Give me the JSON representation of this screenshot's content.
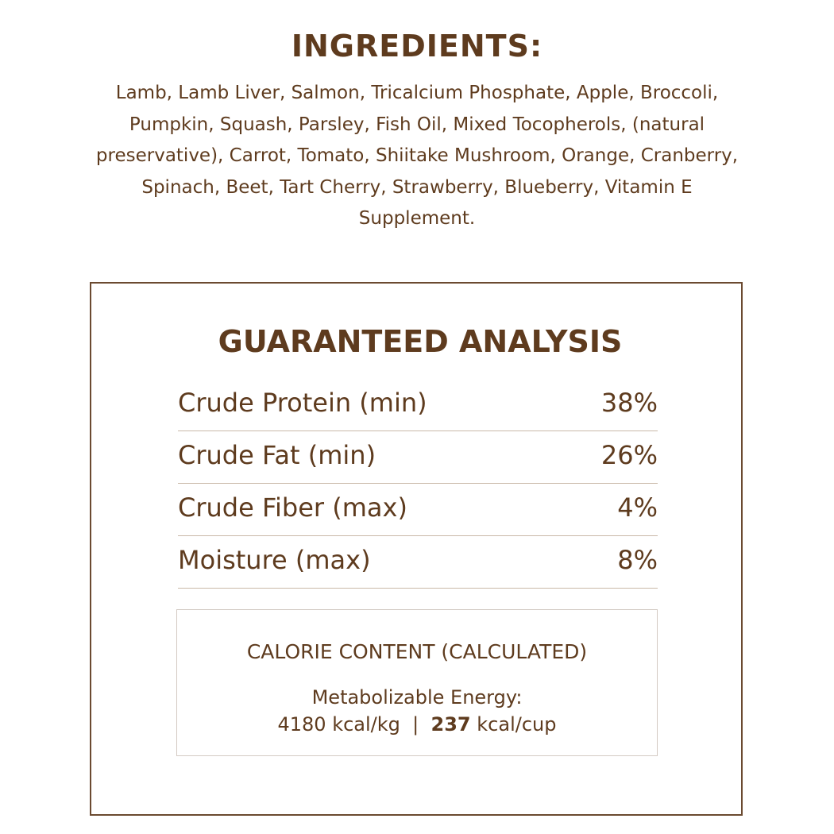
{
  "ingredients": {
    "title": "INGREDIENTS:",
    "text": "Lamb, Lamb Liver, Salmon, Tricalcium Phosphate, Apple, Broccoli, Pumpkin, Squash, Parsley, Fish Oil, Mixed Tocopherols, (natural preservative), Carrot, Tomato, Shiitake Mushroom, Orange, Cranberry, Spinach, Beet, Tart Cherry, Strawberry, Blueberry, Vitamin E Supplement."
  },
  "analysis": {
    "title": "GUARANTEED ANALYSIS",
    "rows": [
      {
        "label": "Crude Protein (min)",
        "value": "38%"
      },
      {
        "label": "Crude Fat (min)",
        "value": "26%"
      },
      {
        "label": "Crude Fiber (max)",
        "value": "4%"
      },
      {
        "label": "Moisture (max)",
        "value": "8%"
      }
    ]
  },
  "calorie": {
    "heading": "CALORIE CONTENT (CALCULATED)",
    "energy_label": "Metabolizable Energy:",
    "per_kg": "4180 kcal/kg",
    "separator": "|",
    "per_cup_number": "237",
    "per_cup_unit": "kcal/cup"
  },
  "colors": {
    "text": "#5e3b1e",
    "box_border": "#6b4a30",
    "divider": "#c9b8a8"
  }
}
